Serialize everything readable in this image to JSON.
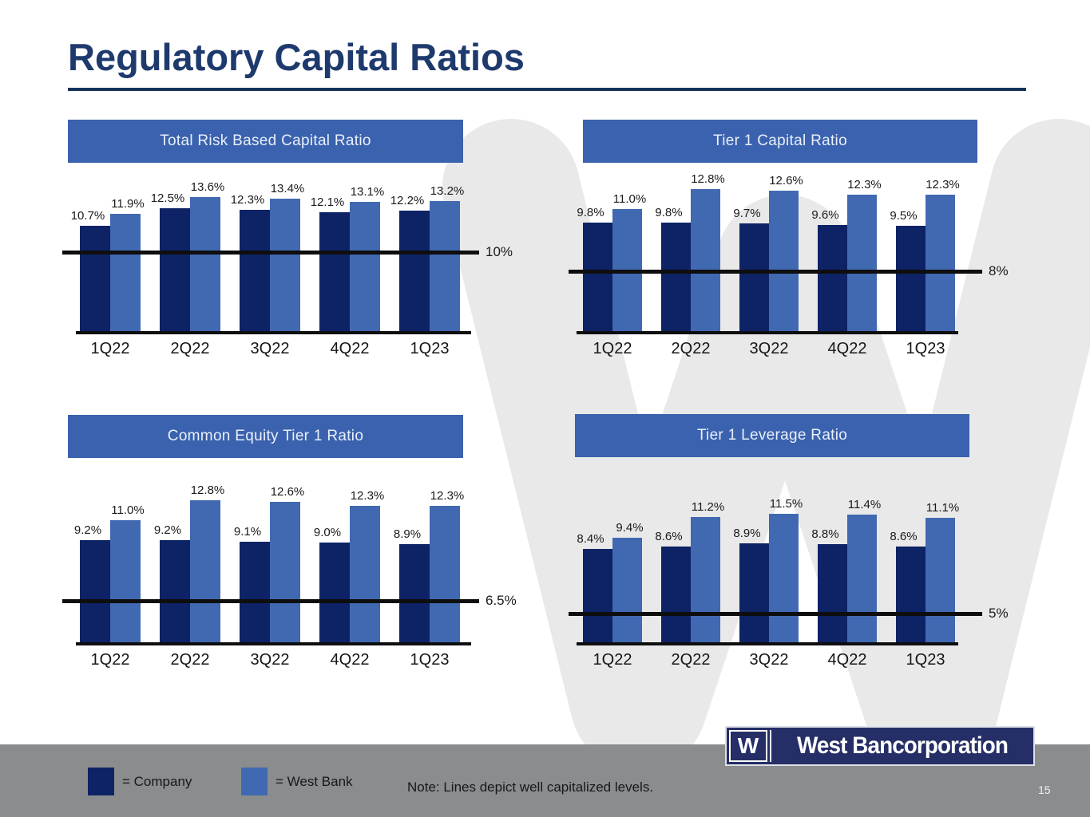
{
  "page": {
    "title": "Regulatory Capital Ratios",
    "page_number": "15"
  },
  "logo": {
    "monogram": "W",
    "name": "West Bancorporation"
  },
  "legend": {
    "company_label": "= Company",
    "west_bank_label": "= West Bank",
    "note": "Note: Lines depict well capitalized levels."
  },
  "colors": {
    "company": "#0d2366",
    "west_bank": "#4169b2",
    "banner": "#3a62ae",
    "title_navy": "#1e3a6d",
    "footer_gray": "#8a8c8e",
    "watermark_gray": "#e9e9e9",
    "line_black": "#0e0e0e"
  },
  "chart_data": [
    {
      "type": "bar",
      "title": "Total Risk Based Capital Ratio",
      "categories": [
        "1Q22",
        "2Q22",
        "3Q22",
        "4Q22",
        "1Q23"
      ],
      "series": [
        {
          "name": "Company",
          "values": [
            10.7,
            12.5,
            12.3,
            12.1,
            12.2
          ]
        },
        {
          "name": "West Bank",
          "values": [
            11.9,
            13.6,
            13.4,
            13.1,
            13.2
          ]
        }
      ],
      "value_label_format": "percent_1dp",
      "reference_line": {
        "value": 10,
        "label": "10%"
      },
      "ylim": [
        0,
        14
      ],
      "grid": false,
      "legend_position": "bottom-shared"
    },
    {
      "type": "bar",
      "title": "Tier 1 Capital Ratio",
      "categories": [
        "1Q22",
        "2Q22",
        "3Q22",
        "4Q22",
        "1Q23"
      ],
      "series": [
        {
          "name": "Company",
          "values": [
            9.8,
            9.8,
            9.7,
            9.6,
            9.5
          ]
        },
        {
          "name": "West Bank",
          "values": [
            11.0,
            12.8,
            12.6,
            12.3,
            12.3
          ]
        }
      ],
      "value_label_format": "percent_1dp",
      "reference_line": {
        "value": 8,
        "label": "8%"
      },
      "ylim": [
        0,
        14
      ],
      "grid": false,
      "legend_position": "bottom-shared"
    },
    {
      "type": "bar",
      "title": "Common Equity Tier 1 Ratio",
      "categories": [
        "1Q22",
        "2Q22",
        "3Q22",
        "4Q22",
        "1Q23"
      ],
      "series": [
        {
          "name": "Company",
          "values": [
            9.2,
            9.2,
            9.1,
            9.0,
            8.9
          ]
        },
        {
          "name": "West Bank",
          "values": [
            11.0,
            12.8,
            12.6,
            12.3,
            12.3
          ]
        }
      ],
      "value_label_format": "percent_1dp",
      "reference_line": {
        "value": 6.5,
        "label": "6.5%"
      },
      "ylim": [
        0,
        14
      ],
      "grid": false,
      "legend_position": "bottom-shared"
    },
    {
      "type": "bar",
      "title": "Tier 1 Leverage Ratio",
      "categories": [
        "1Q22",
        "2Q22",
        "3Q22",
        "4Q22",
        "1Q23"
      ],
      "series": [
        {
          "name": "Company",
          "values": [
            8.4,
            8.6,
            8.9,
            8.8,
            8.6
          ]
        },
        {
          "name": "West Bank",
          "values": [
            9.4,
            11.2,
            11.5,
            11.4,
            11.1
          ]
        }
      ],
      "value_label_format": "percent_1dp",
      "reference_line": {
        "value": 5,
        "label": "5%"
      },
      "ylim": [
        0,
        14
      ],
      "grid": false,
      "legend_position": "bottom-shared"
    }
  ]
}
